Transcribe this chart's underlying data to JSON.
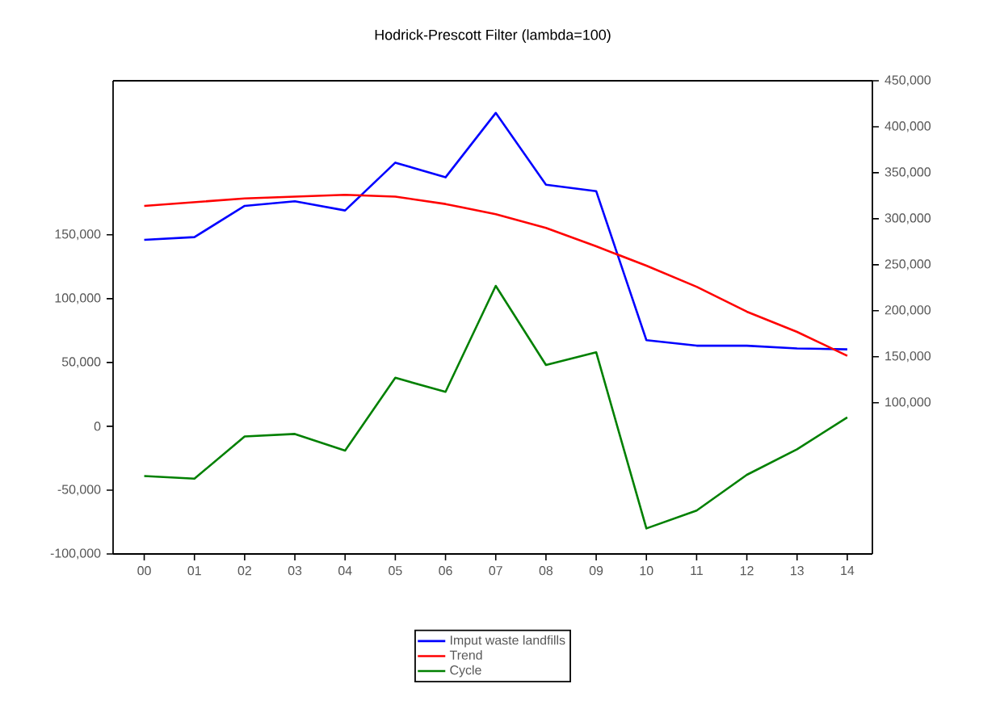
{
  "chart_data": {
    "type": "line",
    "title": "Hodrick-Prescott Filter (lambda=100)",
    "categories": [
      "00",
      "01",
      "02",
      "03",
      "04",
      "05",
      "06",
      "07",
      "08",
      "09",
      "10",
      "11",
      "12",
      "13",
      "14"
    ],
    "series": [
      {
        "name": "Imput waste landfills",
        "color": "#0000ff",
        "axis": "y2",
        "values": [
          277000,
          280000,
          314000,
          319000,
          309000,
          361000,
          345000,
          415000,
          337000,
          330000,
          168000,
          162000,
          162000,
          159000,
          158000
        ]
      },
      {
        "name": "Trend",
        "color": "#ff0000",
        "axis": "y2",
        "values": [
          314000,
          318000,
          322000,
          324000,
          326000,
          324000,
          316000,
          305000,
          290000,
          270000,
          249000,
          226000,
          199000,
          177000,
          151000
        ]
      },
      {
        "name": "Cycle",
        "color": "#008000",
        "values": [
          -39000,
          -41000,
          -8000,
          -6000,
          -19000,
          38000,
          27000,
          110000,
          48000,
          58000,
          -80000,
          -66000,
          -38000,
          -18000,
          7000
        ]
      }
    ],
    "ylim": [
      -100000,
      270700
    ],
    "yticks": [
      {
        "value": -100000,
        "label": "-100,000"
      },
      {
        "value": -50000,
        "label": "-50,000"
      },
      {
        "value": 0,
        "label": "0"
      },
      {
        "value": 50000,
        "label": "50,000"
      },
      {
        "value": 100000,
        "label": "100,000"
      },
      {
        "value": 150000,
        "label": "150,000"
      }
    ],
    "y2lim": [
      -64400,
      450000
    ],
    "y2ticks": [
      {
        "value": 100000,
        "label": "100,000"
      },
      {
        "value": 150000,
        "label": "150,000"
      },
      {
        "value": 200000,
        "label": "200,000"
      },
      {
        "value": 250000,
        "label": "250,000"
      },
      {
        "value": 300000,
        "label": "300,000"
      },
      {
        "value": 350000,
        "label": "350,000"
      },
      {
        "value": 400000,
        "label": "400,000"
      },
      {
        "value": 450000,
        "label": "450,000"
      }
    ],
    "legend": "bottom"
  }
}
